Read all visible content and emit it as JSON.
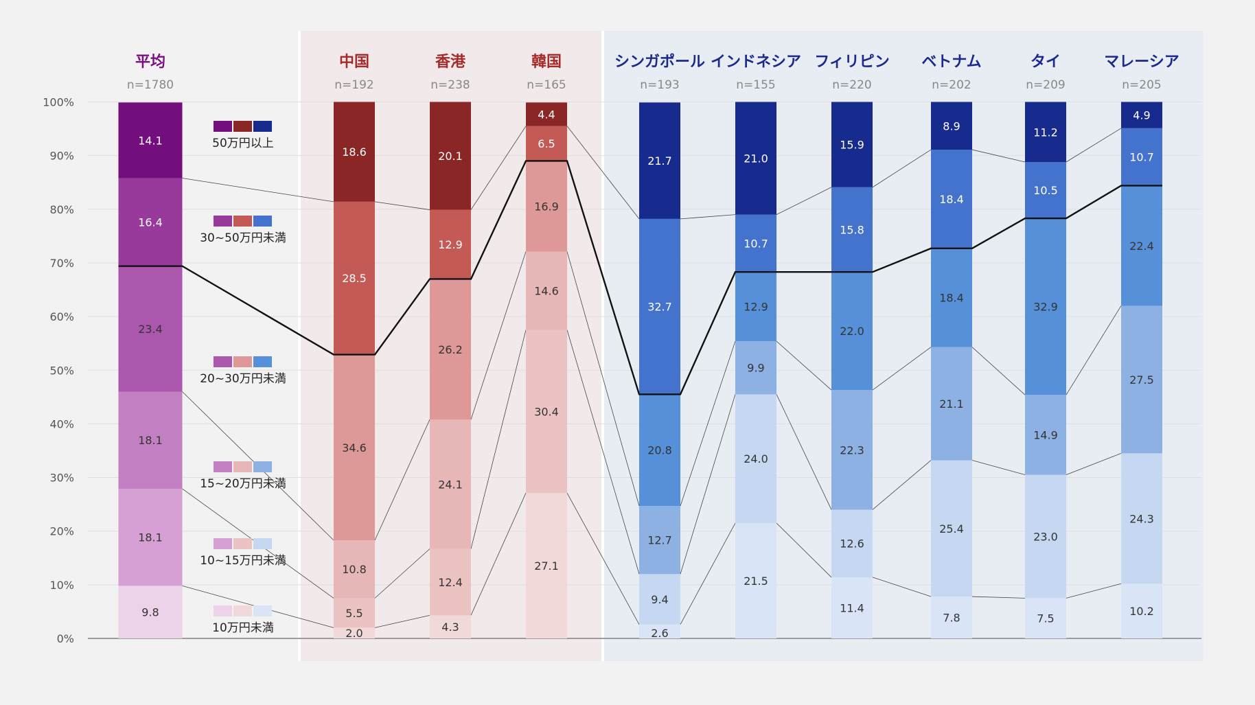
{
  "chart_data": {
    "type": "bar",
    "stacked": true,
    "y_axis": {
      "min": 0,
      "max": 100,
      "ticks": [
        0,
        10,
        20,
        30,
        40,
        50,
        60,
        70,
        80,
        90,
        100
      ],
      "tick_labels": [
        "0%",
        "10%",
        "20%",
        "30%",
        "40%",
        "50%",
        "60%",
        "70%",
        "80%",
        "90%",
        "100%"
      ],
      "grid": true
    },
    "groups": [
      {
        "name": "average",
        "columns": [
          0
        ]
      },
      {
        "name": "east-asia",
        "columns": [
          1,
          2,
          3
        ]
      },
      {
        "name": "southeast-asia",
        "columns": [
          4,
          5,
          6,
          7,
          8,
          9
        ]
      }
    ],
    "categories": [
      {
        "label": "平均",
        "n": "n=1780",
        "group": "average"
      },
      {
        "label": "中国",
        "n": "n=192",
        "group": "east-asia"
      },
      {
        "label": "香港",
        "n": "n=238",
        "group": "east-asia"
      },
      {
        "label": "韓国",
        "n": "n=165",
        "group": "east-asia"
      },
      {
        "label": "シンガポール",
        "n": "n=193",
        "group": "southeast-asia"
      },
      {
        "label": "インドネシア",
        "n": "n=155",
        "group": "southeast-asia"
      },
      {
        "label": "フィリピン",
        "n": "n=220",
        "group": "southeast-asia"
      },
      {
        "label": "ベトナム",
        "n": "n=202",
        "group": "southeast-asia"
      },
      {
        "label": "タイ",
        "n": "n=209",
        "group": "southeast-asia"
      },
      {
        "label": "マレーシア",
        "n": "n=205",
        "group": "southeast-asia"
      }
    ],
    "series": [
      {
        "name": "10万円未満",
        "values": [
          9.8,
          2.0,
          4.3,
          27.1,
          2.6,
          21.5,
          11.4,
          7.8,
          7.5,
          10.2
        ]
      },
      {
        "name": "10~15万円未満",
        "values": [
          18.1,
          5.5,
          12.4,
          30.4,
          9.4,
          24.0,
          12.6,
          25.4,
          23.0,
          24.3
        ]
      },
      {
        "name": "15~20万円未満",
        "values": [
          18.1,
          10.8,
          24.1,
          14.6,
          12.7,
          9.9,
          22.3,
          21.1,
          14.9,
          27.5
        ]
      },
      {
        "name": "20~30万円未満",
        "values": [
          23.4,
          34.6,
          26.2,
          16.9,
          20.8,
          12.9,
          22.0,
          18.4,
          32.9,
          22.4
        ]
      },
      {
        "name": "30~50万円未満",
        "values": [
          16.4,
          28.5,
          12.9,
          6.5,
          32.7,
          10.7,
          15.8,
          18.4,
          10.5,
          10.7
        ]
      },
      {
        "name": "50万円以上",
        "values": [
          14.1,
          18.6,
          20.1,
          4.4,
          21.7,
          21.0,
          15.9,
          8.9,
          11.2,
          4.9
        ]
      }
    ],
    "highlight_line_series_index": 3,
    "colors": {
      "average": [
        "#ecd3ea",
        "#d6a0d4",
        "#c280c3",
        "#aa57ad",
        "#983a9b",
        "#720f7c"
      ],
      "east-asia": [
        "#f2d9d9",
        "#ebc3c3",
        "#e7b6b6",
        "#de9898",
        "#c45a56",
        "#8b2626"
      ],
      "southeast-asia": [
        "#d9e4f6",
        "#c5d7f1",
        "#8eb1e3",
        "#5590d8",
        "#4473cd",
        "#172a8e"
      ],
      "title_average": "#7a1080",
      "title_east_asia": "#a52a2a",
      "title_southeast_asia": "#1a2a8c",
      "panel_east_asia": "#f2eaea",
      "panel_southeast_asia": "#e8edf4"
    },
    "legend": [
      {
        "label": "50万円以上",
        "series_index": 5
      },
      {
        "label": "30~50万円未満",
        "series_index": 4
      },
      {
        "label": "20~30万円未満",
        "series_index": 3
      },
      {
        "label": "15~20万円未満",
        "series_index": 2
      },
      {
        "label": "10~15万円未満",
        "series_index": 1
      },
      {
        "label": "10万円未満",
        "series_index": 0
      }
    ],
    "legend_placement": "left, between average column and others"
  }
}
